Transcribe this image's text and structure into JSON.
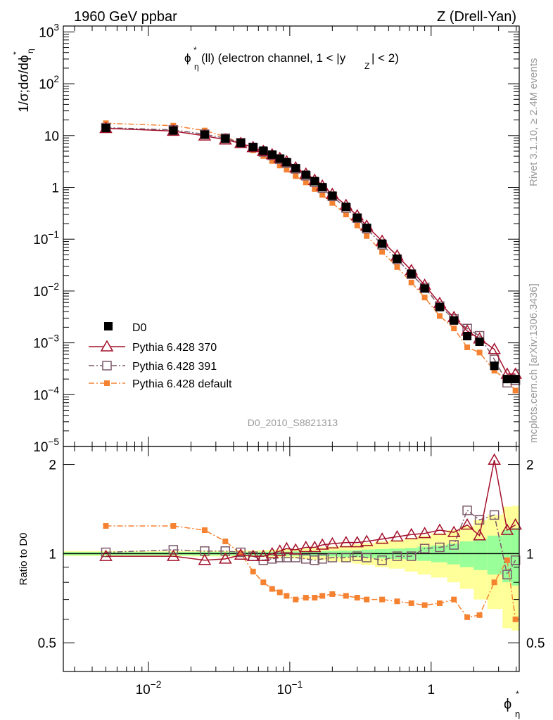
{
  "header": {
    "left": "1960 GeV ppbar",
    "right": "Z (Drell-Yan)"
  },
  "side_labels": {
    "rivet": "Rivet 3.1.10, ≥ 2.4M events",
    "mcplots": "mcplots.cern.ch [arXiv:1306.3436]"
  },
  "analysis_id": "D0_2010_S8821313",
  "colors": {
    "D0": "#000000",
    "p370": "#a3102b",
    "p391": "#7d5a6a",
    "pdef": "#f58231",
    "band_yellow": "#ffff99",
    "band_green": "#99ff99"
  },
  "chart_data": [
    {
      "type": "scatter",
      "title_parts": {
        "main": "ϕ",
        "sup": "*",
        "sub": "η",
        "rest": "(ll) (electron channel, 1 < |y",
        "zsub": "Z",
        "end": "| < 2)"
      },
      "ylabel_parts": {
        "main": "1/σ;dσ/dϕ",
        "sup": "*",
        "sub": "η"
      },
      "xlabel_parts": {
        "main": "ϕ",
        "sup": "*",
        "sub": "η"
      },
      "xscale": "log",
      "yscale": "log",
      "xlim": [
        0.0025,
        4.2
      ],
      "ylim": [
        1e-05,
        1300
      ],
      "x_tick_labels": [
        "10^-2",
        "10^-1",
        "1"
      ],
      "y_tick_labels": [
        "10^-5",
        "10^-4",
        "10^-3",
        "10^-2",
        "10^-1",
        "1",
        "10",
        "10^2",
        "10^3"
      ],
      "legend_position": "lower-left",
      "x": [
        0.005,
        0.015,
        0.025,
        0.035,
        0.045,
        0.055,
        0.065,
        0.075,
        0.085,
        0.095,
        0.11,
        0.13,
        0.15,
        0.17,
        0.2,
        0.25,
        0.3,
        0.35,
        0.45,
        0.575,
        0.725,
        0.9,
        1.15,
        1.45,
        1.8,
        2.2,
        2.8,
        3.45,
        3.95
      ],
      "series": [
        {
          "name": "D0",
          "marker": "filled-square",
          "values": [
            14,
            12.5,
            10.4,
            8.7,
            7.2,
            6.0,
            5.1,
            4.3,
            3.6,
            3.05,
            2.35,
            1.75,
            1.32,
            1.01,
            0.69,
            0.42,
            0.26,
            0.165,
            0.082,
            0.042,
            0.0215,
            0.0112,
            0.0049,
            0.0027,
            0.00135,
            0.00105,
            0.00036,
            0.0002,
            0.0002
          ]
        },
        {
          "name": "Pythia 6.428 370",
          "marker": "open-triangle",
          "values": [
            13.8,
            12.2,
            9.9,
            8.3,
            7.1,
            5.9,
            5.0,
            4.3,
            3.65,
            3.15,
            2.4,
            1.82,
            1.38,
            1.07,
            0.74,
            0.45,
            0.285,
            0.18,
            0.092,
            0.048,
            0.025,
            0.013,
            0.0058,
            0.0031,
            0.0017,
            0.0012,
            0.00075,
            0.00025,
            0.00025
          ]
        },
        {
          "name": "Pythia 6.428 391",
          "marker": "open-square",
          "values": [
            14.2,
            12.9,
            10.6,
            8.9,
            7.3,
            5.9,
            4.85,
            4.15,
            3.5,
            2.95,
            2.28,
            1.68,
            1.26,
            0.97,
            0.67,
            0.4,
            0.255,
            0.16,
            0.078,
            0.041,
            0.021,
            0.0117,
            0.0051,
            0.0029,
            0.00189,
            0.00137,
            0.00048,
            0.00017,
            0.00019
          ]
        },
        {
          "name": "Pythia 6.428 default",
          "marker": "filled-small-square",
          "values": [
            17.3,
            15.5,
            12.5,
            9.5,
            7.1,
            5.2,
            4.05,
            3.25,
            2.65,
            2.2,
            1.65,
            1.25,
            0.93,
            0.72,
            0.5,
            0.3,
            0.185,
            0.115,
            0.057,
            0.029,
            0.0146,
            0.0075,
            0.0033,
            0.0019,
            0.00082,
            0.00065,
            0.00029,
            0.00019,
            0.00012
          ]
        }
      ]
    },
    {
      "type": "scatter",
      "ylabel": "Ratio to D0",
      "xscale": "log",
      "ylim": [
        0.4,
        2.3
      ],
      "y_tick_labels": [
        "0.5",
        "1",
        "2"
      ],
      "x": [
        0.005,
        0.015,
        0.025,
        0.035,
        0.045,
        0.055,
        0.065,
        0.075,
        0.085,
        0.095,
        0.11,
        0.13,
        0.15,
        0.17,
        0.2,
        0.25,
        0.3,
        0.35,
        0.45,
        0.575,
        0.725,
        0.9,
        1.15,
        1.45,
        1.8,
        2.2,
        2.8,
        3.45,
        3.95
      ],
      "bands": {
        "bin_edges": [
          0.0025,
          0.01,
          0.02,
          0.03,
          0.04,
          0.05,
          0.06,
          0.07,
          0.08,
          0.09,
          0.1,
          0.12,
          0.14,
          0.16,
          0.18,
          0.22,
          0.28,
          0.32,
          0.4,
          0.5,
          0.65,
          0.8,
          1.0,
          1.3,
          1.6,
          2.0,
          2.5,
          3.2,
          3.7,
          4.2
        ],
        "inner_halfwidth": [
          0.012,
          0.012,
          0.013,
          0.013,
          0.014,
          0.014,
          0.015,
          0.015,
          0.016,
          0.016,
          0.017,
          0.018,
          0.019,
          0.02,
          0.022,
          0.025,
          0.028,
          0.032,
          0.036,
          0.04,
          0.045,
          0.055,
          0.065,
          0.08,
          0.1,
          0.12,
          0.15,
          0.2,
          0.22
        ],
        "outer_halfwidth": [
          0.02,
          0.02,
          0.022,
          0.022,
          0.024,
          0.025,
          0.027,
          0.03,
          0.032,
          0.035,
          0.038,
          0.042,
          0.046,
          0.05,
          0.056,
          0.065,
          0.075,
          0.085,
          0.1,
          0.11,
          0.13,
          0.15,
          0.17,
          0.2,
          0.24,
          0.3,
          0.35,
          0.44,
          0.45
        ]
      },
      "series": [
        {
          "name": "Pythia 6.428 370",
          "values": [
            0.98,
            0.98,
            0.95,
            0.96,
            0.99,
            0.98,
            0.98,
            1.0,
            1.02,
            1.04,
            1.03,
            1.05,
            1.05,
            1.07,
            1.08,
            1.09,
            1.09,
            1.1,
            1.12,
            1.14,
            1.16,
            1.17,
            1.2,
            1.18,
            1.25,
            1.15,
            2.07,
            1.2,
            1.25
          ]
        },
        {
          "name": "Pythia 6.428 391",
          "values": [
            1.01,
            1.03,
            1.02,
            1.02,
            1.01,
            0.98,
            0.95,
            0.96,
            0.97,
            0.97,
            0.97,
            0.96,
            0.95,
            0.96,
            0.97,
            0.97,
            0.98,
            0.97,
            0.95,
            0.98,
            0.98,
            1.04,
            1.05,
            1.07,
            1.4,
            1.3,
            1.35,
            0.85,
            0.95
          ]
        },
        {
          "name": "Pythia 6.428 default",
          "values": [
            1.24,
            1.24,
            1.2,
            1.1,
            1.0,
            0.87,
            0.8,
            0.76,
            0.74,
            0.72,
            0.7,
            0.71,
            0.71,
            0.72,
            0.73,
            0.72,
            0.71,
            0.7,
            0.7,
            0.69,
            0.68,
            0.67,
            0.68,
            0.7,
            0.61,
            0.62,
            0.8,
            0.95,
            0.6
          ]
        }
      ]
    }
  ]
}
